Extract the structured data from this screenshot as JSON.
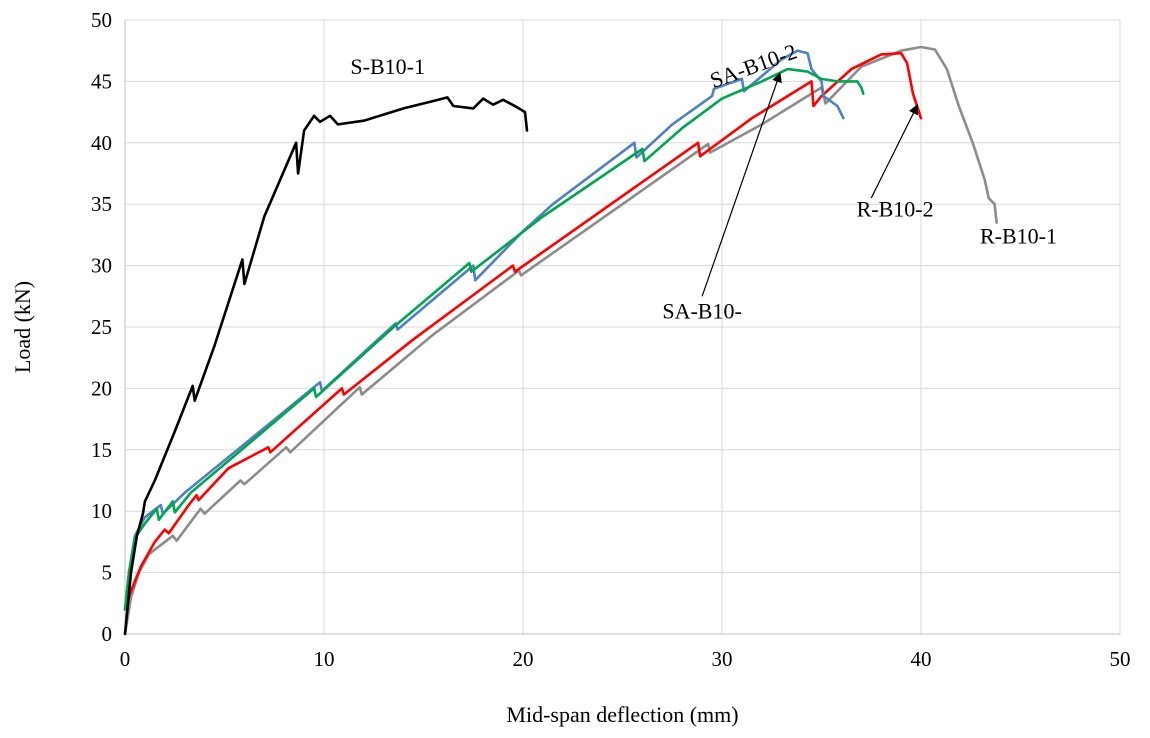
{
  "chart_data": {
    "type": "line",
    "xlabel": "Mid-span deflection (mm)",
    "ylabel": "Load (kN)",
    "xlim": [
      0,
      50
    ],
    "ylim": [
      0,
      50
    ],
    "xticks": [
      0,
      10,
      20,
      30,
      40,
      50
    ],
    "yticks": [
      0,
      5,
      10,
      15,
      20,
      25,
      30,
      35,
      40,
      45,
      50
    ],
    "grid": true,
    "legend": "none",
    "series": [
      {
        "key": "r-b10-1",
        "color": "#8c8c8c",
        "points": [
          [
            0,
            0
          ],
          [
            0.3,
            3
          ],
          [
            0.7,
            5
          ],
          [
            1.2,
            6.5
          ],
          [
            2.4,
            8
          ],
          [
            2.6,
            7.6
          ],
          [
            3.8,
            10.2
          ],
          [
            4.0,
            9.8
          ],
          [
            5.8,
            12.5
          ],
          [
            6.0,
            12.2
          ],
          [
            8.1,
            15.2
          ],
          [
            8.3,
            14.8
          ],
          [
            11.8,
            20.1
          ],
          [
            11.9,
            19.5
          ],
          [
            15.5,
            24.4
          ],
          [
            19.8,
            29.6
          ],
          [
            19.9,
            29.2
          ],
          [
            29.3,
            39.9
          ],
          [
            29.4,
            39.2
          ],
          [
            32,
            41.5
          ],
          [
            35,
            44.5
          ],
          [
            35.2,
            43.2
          ],
          [
            37,
            46.2
          ],
          [
            39,
            47.5
          ],
          [
            40,
            47.8
          ],
          [
            40.7,
            47.6
          ],
          [
            41.3,
            46
          ],
          [
            41.9,
            43
          ],
          [
            42.6,
            40
          ],
          [
            43.2,
            37
          ],
          [
            43.4,
            35.5
          ],
          [
            43.7,
            35
          ],
          [
            43.8,
            33.5
          ]
        ]
      },
      {
        "key": "r-b10-2",
        "color": "#ff0000",
        "points": [
          [
            0,
            2
          ],
          [
            0.3,
            3.5
          ],
          [
            0.8,
            5.5
          ],
          [
            1.5,
            7.5
          ],
          [
            2.0,
            8.5
          ],
          [
            2.2,
            8.2
          ],
          [
            3.2,
            10.5
          ],
          [
            3.6,
            11.3
          ],
          [
            3.7,
            10.9
          ],
          [
            5.2,
            13.5
          ],
          [
            7.2,
            15.2
          ],
          [
            7.3,
            14.8
          ],
          [
            10.9,
            20
          ],
          [
            11.0,
            19.5
          ],
          [
            14.5,
            24
          ],
          [
            19.5,
            30
          ],
          [
            19.6,
            29.5
          ],
          [
            28.8,
            40
          ],
          [
            28.9,
            38.9
          ],
          [
            31.5,
            42
          ],
          [
            34.5,
            45
          ],
          [
            34.6,
            43
          ],
          [
            35,
            43.8
          ],
          [
            36.5,
            46
          ],
          [
            38,
            47.2
          ],
          [
            39,
            47.3
          ],
          [
            39.3,
            46.5
          ],
          [
            39.6,
            44
          ],
          [
            40,
            42
          ]
        ]
      },
      {
        "key": "sa-b10-2",
        "color": "#4f81bd",
        "points": [
          [
            0,
            2
          ],
          [
            0.2,
            5
          ],
          [
            0.5,
            8
          ],
          [
            1.0,
            9.5
          ],
          [
            1.8,
            10.5
          ],
          [
            1.9,
            9.8
          ],
          [
            3.0,
            11.5
          ],
          [
            5.5,
            14.8
          ],
          [
            9.8,
            20.5
          ],
          [
            9.9,
            19.8
          ],
          [
            13.6,
            25.3
          ],
          [
            13.7,
            24.8
          ],
          [
            17.5,
            30
          ],
          [
            17.6,
            28.8
          ],
          [
            20,
            32.8
          ],
          [
            21.5,
            35
          ],
          [
            25.6,
            40
          ],
          [
            25.7,
            38.8
          ],
          [
            27.5,
            41.5
          ],
          [
            29.5,
            43.8
          ],
          [
            29.6,
            44.4
          ],
          [
            31,
            45.2
          ],
          [
            31.1,
            44.2
          ],
          [
            33.0,
            46.8
          ],
          [
            33.8,
            47.5
          ],
          [
            34.3,
            47.3
          ],
          [
            34.5,
            46
          ],
          [
            35,
            45
          ],
          [
            35.1,
            43.8
          ],
          [
            35.8,
            43
          ],
          [
            36.1,
            42
          ]
        ]
      },
      {
        "key": "sa-b10-1",
        "color": "#00a550",
        "points": [
          [
            0,
            2
          ],
          [
            0.2,
            5
          ],
          [
            0.5,
            7.8
          ],
          [
            1.0,
            9
          ],
          [
            1.6,
            10.2
          ],
          [
            1.7,
            9.3
          ],
          [
            2.4,
            10.8
          ],
          [
            2.5,
            9.9
          ],
          [
            3.3,
            11.5
          ],
          [
            5.5,
            14.5
          ],
          [
            9.5,
            20
          ],
          [
            9.6,
            19.3
          ],
          [
            13.5,
            25
          ],
          [
            17.3,
            30.2
          ],
          [
            17.4,
            29.5
          ],
          [
            21,
            34
          ],
          [
            26,
            39.5
          ],
          [
            26.1,
            38.5
          ],
          [
            28,
            41.2
          ],
          [
            30,
            43.6
          ],
          [
            32,
            45
          ],
          [
            33.3,
            46
          ],
          [
            34.3,
            45.8
          ],
          [
            35,
            45.2
          ],
          [
            35.8,
            45
          ],
          [
            36.8,
            45
          ],
          [
            37,
            44.5
          ],
          [
            37.1,
            44
          ]
        ]
      },
      {
        "key": "s-b10-1",
        "color": "#000000",
        "points": [
          [
            0,
            0
          ],
          [
            0.3,
            5
          ],
          [
            0.6,
            8
          ],
          [
            0.9,
            9.8
          ],
          [
            1.0,
            10.8
          ],
          [
            1.5,
            12.5
          ],
          [
            2.5,
            16.5
          ],
          [
            3.4,
            20.2
          ],
          [
            3.5,
            19
          ],
          [
            4.5,
            23.5
          ],
          [
            5.9,
            30.5
          ],
          [
            6.0,
            28.5
          ],
          [
            7.0,
            34
          ],
          [
            8.6,
            40
          ],
          [
            8.7,
            37.5
          ],
          [
            9.0,
            41
          ],
          [
            9.5,
            42.2
          ],
          [
            9.8,
            41.7
          ],
          [
            10.3,
            42.2
          ],
          [
            10.7,
            41.5
          ],
          [
            12,
            41.8
          ],
          [
            14,
            42.8
          ],
          [
            15.5,
            43.4
          ],
          [
            16.2,
            43.7
          ],
          [
            16.5,
            43
          ],
          [
            17.5,
            42.8
          ],
          [
            18.0,
            43.6
          ],
          [
            18.5,
            43.1
          ],
          [
            19,
            43.5
          ],
          [
            19.7,
            42.9
          ],
          [
            20.1,
            42.5
          ],
          [
            20.2,
            41
          ]
        ]
      }
    ],
    "annotations": [
      {
        "key": "s-b10-1",
        "text": "S-B10-1",
        "x": 13.2,
        "y": 45.6,
        "rotate": 0
      },
      {
        "key": "sa-b10-2",
        "text": "SA-B10-2",
        "x": 31.7,
        "y": 45.7,
        "rotate": -20
      },
      {
        "key": "sa-b10-1",
        "text": "SA-B10-",
        "x": 29.0,
        "y": 25.7,
        "rotate": 0
      },
      {
        "key": "r-b10-2",
        "text": "R-B10-2",
        "x": 38.7,
        "y": 34.0,
        "rotate": 0
      },
      {
        "key": "r-b10-1",
        "text": "R-B10-1",
        "x": 44.9,
        "y": 31.8,
        "rotate": 0
      }
    ],
    "arrows": [
      {
        "key": "sa-b10-1",
        "from": [
          29.0,
          27.5
        ],
        "to": [
          32.9,
          45.6
        ]
      },
      {
        "key": "r-b10-2",
        "from": [
          37.5,
          35.5
        ],
        "to": [
          39.8,
          43.0
        ]
      }
    ]
  }
}
